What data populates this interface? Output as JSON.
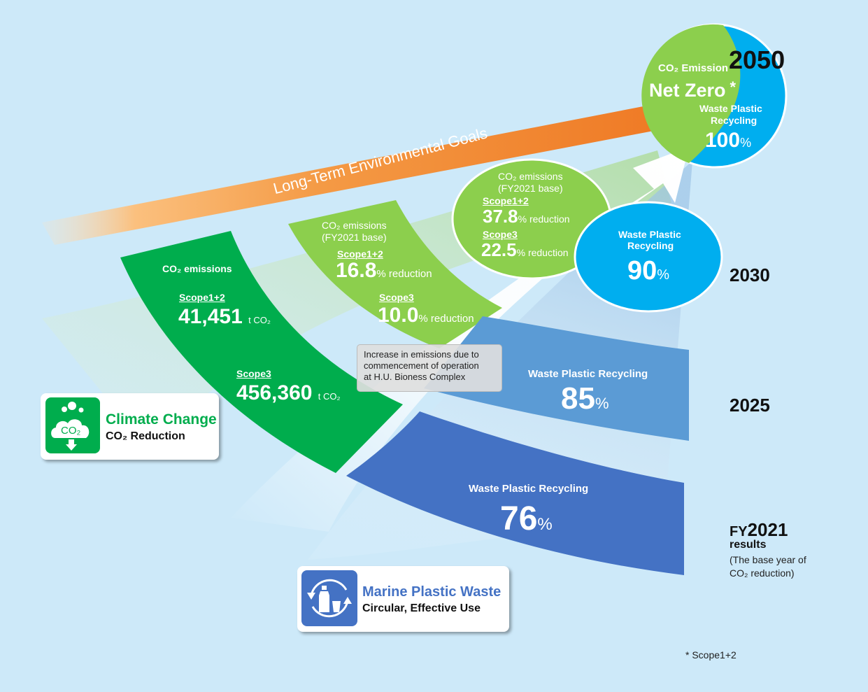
{
  "arrow_label": "Long-Term Environmental Goals",
  "goal_2050": {
    "year": "2050",
    "co2_label": "CO₂ Emission",
    "co2_value": "Net Zero",
    "asterisk": "*",
    "plastic_label_line1": "Waste Plastic",
    "plastic_label_line2": "Recycling",
    "plastic_value": "100",
    "plastic_unit": "%"
  },
  "goal_2030": {
    "year": "2030",
    "co2_label_line1": "CO₂ emissions",
    "co2_label_line2": "(FY2021 base)",
    "scope12_label": "Scope1+2",
    "scope12_value": "37.8",
    "scope12_unit": "% reduction",
    "scope3_label": "Scope3",
    "scope3_value": "22.5",
    "scope3_unit": "% reduction",
    "plastic_label_line1": "Waste Plastic",
    "plastic_label_line2": "Recycling",
    "plastic_value": "90",
    "plastic_unit": "%"
  },
  "goal_2025": {
    "year": "2025",
    "co2_label_line1": "CO₂ emissions",
    "co2_label_line2": "(FY2021 base)",
    "scope12_label": "Scope1+2",
    "scope12_value": "16.8",
    "scope12_unit": "% reduction",
    "scope3_label": "Scope3",
    "scope3_value": "10.0",
    "scope3_unit": "% reduction",
    "plastic_label": "Waste Plastic Recycling",
    "plastic_value": "85",
    "plastic_unit": "%"
  },
  "fy2021": {
    "year_prefix": "FY",
    "year": "2021",
    "results": "results",
    "base_note_line1": "(The base year of",
    "base_note_line2": "CO₂ reduction)",
    "co2_label": "CO₂ emissions",
    "scope12_label": "Scope1+2",
    "scope12_value": "41,451",
    "scope12_unit": "t CO₂",
    "scope3_label": "Scope3",
    "scope3_value": "456,360",
    "scope3_unit": "t CO₂",
    "plastic_label": "Waste Plastic Recycling",
    "plastic_value": "76",
    "plastic_unit": "%"
  },
  "note": {
    "line1": "Increase in emissions due to",
    "line2": "commencement of operation",
    "line3": "at H.U. Bioness Complex"
  },
  "climate_badge": {
    "icon_text": "CO₂",
    "title": "Climate Change",
    "subtitle": "CO₂ Reduction"
  },
  "marine_badge": {
    "title": "Marine Plastic Waste",
    "subtitle": "Circular, Effective Use"
  },
  "footnote": "* Scope1+2",
  "colors": {
    "background": "#cde9f9",
    "dark_green": "#00ad4d",
    "light_green": "#8ccf4d",
    "cyan": "#00aeef",
    "mid_blue": "#5b9bd5",
    "dark_blue": "#4472c4",
    "orange": "#f07f2a"
  }
}
